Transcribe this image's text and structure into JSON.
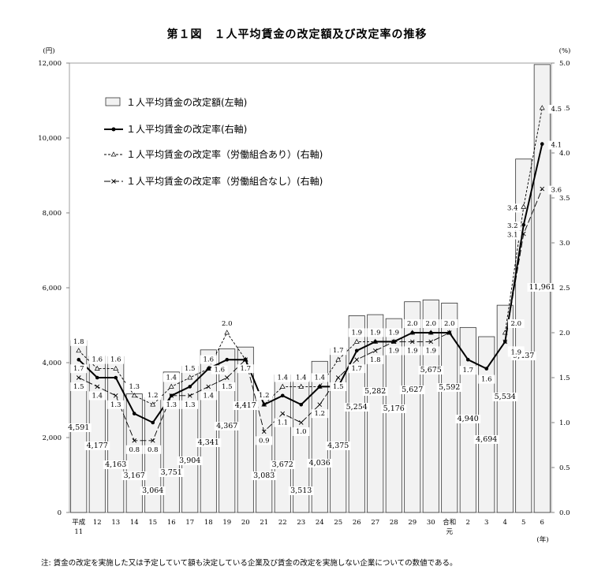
{
  "title": "第１図　１人平均賃金の改定額及び改定率の推移",
  "note": "注: 賃金の改定を実施した又は予定していて額も決定している企業及び賃金の改定を実施しない企業についての数値である。",
  "chart_data": {
    "type": "bar",
    "categories": [
      "平成\n11",
      "12",
      "13",
      "14",
      "15",
      "16",
      "17",
      "18",
      "19",
      "20",
      "21",
      "22",
      "23",
      "24",
      "25",
      "26",
      "27",
      "28",
      "29",
      "30",
      "合和\n元",
      "2",
      "3",
      "4",
      "5",
      "6"
    ],
    "y_left_unit": "(円)",
    "y_right_unit": "(%)",
    "x_unit": "(年)",
    "y_left_ticks": [
      "0",
      "2,000",
      "4,000",
      "6,000",
      "8,000",
      "10,000",
      "12,000"
    ],
    "y_right_ticks": [
      "0.0",
      "0.5",
      "1.0",
      "1.5",
      "2.0",
      "2.5",
      "3.0",
      "3.5",
      "4.0",
      "4.5",
      "5.0"
    ],
    "ylim_left": [
      0,
      12000
    ],
    "ylim_right": [
      0,
      5
    ],
    "legend": [
      "１人平均賃金の改定額(左軸)",
      "１人平均賃金の改定率(右軸)",
      "１人平均賃金の改定率（労働組合あり）(右軸)",
      "１人平均賃金の改定率（労働組合なし）(右軸)"
    ],
    "legend_position": "top-left",
    "series": [
      {
        "name": "１人平均賃金の改定額(左軸)",
        "kind": "bar",
        "axis": "left",
        "values": [
          4591,
          4177,
          4163,
          3167,
          3064,
          3751,
          3904,
          4341,
          4367,
          4417,
          3083,
          3672,
          3513,
          4036,
          4375,
          5254,
          5282,
          5176,
          5627,
          5675,
          5592,
          4940,
          4694,
          5534,
          9437,
          11961
        ],
        "labels": [
          "4,591",
          "4,177",
          "4,163",
          "3,167",
          "3,064",
          "3,751",
          "3,904",
          "4,341",
          "4,367",
          "4,417",
          "3,083",
          "3,672",
          "3,513",
          "4,036",
          "4,375",
          "5,254",
          "5,282",
          "5,176",
          "5,627",
          "5,675",
          "5,592",
          "4,940",
          "4,694",
          "5,534",
          "9,437",
          "11,961"
        ]
      },
      {
        "name": "１人平均賃金の改定率(右軸)",
        "kind": "line",
        "axis": "right",
        "values": [
          1.7,
          1.5,
          1.5,
          1.1,
          1.0,
          1.3,
          1.4,
          1.6,
          1.7,
          1.7,
          1.2,
          1.3,
          1.2,
          1.4,
          1.4,
          1.8,
          1.9,
          1.9,
          2.0,
          2.0,
          2.0,
          1.7,
          1.6,
          1.9,
          3.2,
          4.1
        ],
        "labels": [
          "1.7",
          "",
          "",
          "",
          "",
          "",
          "",
          "1.6",
          "",
          "",
          "",
          "",
          "",
          "",
          "",
          "",
          "",
          "",
          "",
          "",
          "",
          "1.7",
          "1.6",
          "1.9",
          "3.2",
          "4.1"
        ]
      },
      {
        "name": "１人平均賃金の改定率（労働組合あり）(右軸)",
        "kind": "line",
        "axis": "right",
        "values": [
          1.8,
          1.6,
          1.6,
          1.3,
          1.2,
          1.4,
          1.5,
          1.6,
          2.0,
          1.7,
          1.2,
          1.4,
          1.4,
          1.4,
          1.7,
          1.9,
          1.9,
          1.9,
          2.0,
          2.0,
          2.0,
          null,
          null,
          2.0,
          3.4,
          4.5
        ],
        "labels": [
          "1.8",
          "1.6",
          "1.6",
          "1.3",
          "1.2",
          "1.4",
          "1.5",
          "1.6",
          "2.0",
          "",
          "1.2",
          "1.4",
          "1.4",
          "1.4",
          "1.7",
          "1.9",
          "1.9",
          "1.9",
          "2.0",
          "2.0",
          "2.0",
          "",
          "",
          "2.0",
          "3.4",
          "4.5"
        ]
      },
      {
        "name": "１人平均賃金の改定率（労働組合なし）(右軸)",
        "kind": "line",
        "axis": "right",
        "values": [
          1.5,
          1.4,
          1.3,
          0.8,
          0.8,
          1.3,
          1.3,
          1.4,
          1.5,
          1.7,
          0.9,
          1.1,
          1.0,
          1.2,
          1.5,
          1.7,
          1.8,
          1.9,
          1.9,
          1.9,
          2.0,
          null,
          null,
          1.9,
          3.1,
          3.6
        ],
        "labels": [
          "1.5",
          "1.4",
          "1.3",
          "0.8",
          "0.8",
          "1.3",
          "1.3",
          "1.4",
          "1.5",
          "1.7",
          "0.9",
          "1.1",
          "1.0",
          "1.2",
          "1.5",
          "1.7",
          "1.8",
          "1.9",
          "1.9",
          "1.9",
          "",
          "",
          "",
          "1.9",
          "3.1",
          "3.6"
        ]
      }
    ],
    "grid": false
  }
}
